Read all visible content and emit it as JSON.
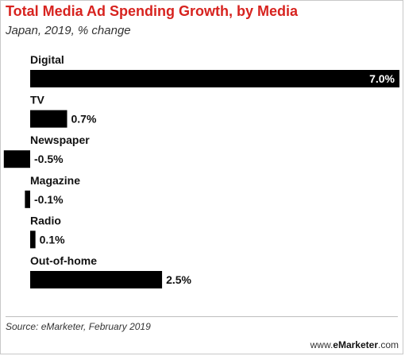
{
  "header": {
    "title": "Total Media Ad Spending Growth, by Media",
    "subtitle": "Japan, 2019, % change"
  },
  "footer": {
    "source": "Source: eMarketer, February 2019",
    "brand_prefix": "www.",
    "brand_name": "eMarketer",
    "brand_suffix": ".com"
  },
  "colors": {
    "title": "#d7231f",
    "bar": "#000000",
    "text": "#111111"
  },
  "chart_data": {
    "type": "bar",
    "orientation": "horizontal",
    "title": "Total Media Ad Spending Growth, by Media",
    "subtitle": "Japan, 2019, % change",
    "categories": [
      "Digital",
      "TV",
      "Newspaper",
      "Magazine",
      "Radio",
      "Out-of-home"
    ],
    "values": [
      7.0,
      0.7,
      -0.5,
      -0.1,
      0.1,
      2.5
    ],
    "value_labels": [
      "7.0%",
      "0.7%",
      "-0.5%",
      "-0.1%",
      "0.1%",
      "2.5%"
    ],
    "unit": "%",
    "xlim": [
      -0.5,
      7.0
    ],
    "grid": false,
    "legend": "none"
  }
}
